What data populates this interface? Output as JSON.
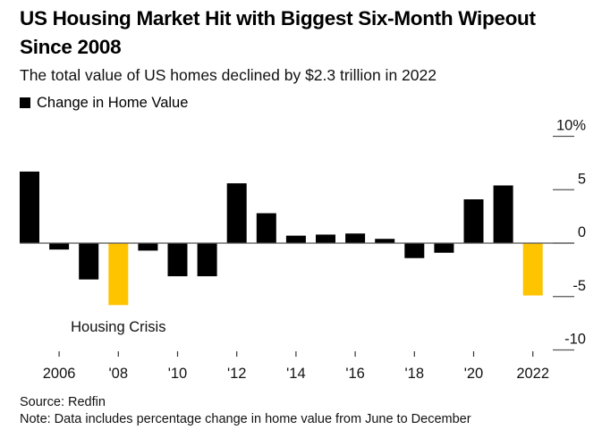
{
  "header": {
    "title": "US Housing Market Hit with Biggest Six-Month Wipeout Since 2008",
    "subtitle": "The total value of US homes declined by $2.3 trillion in 2022"
  },
  "legend": {
    "label": "Change in Home Value"
  },
  "footer": {
    "source": "Source: Redfin",
    "note": "Note: Data includes percentage change in home value from June to December"
  },
  "chart_data": {
    "type": "bar",
    "title": "US Housing Market Hit with Biggest Six-Month Wipeout Since 2008",
    "subtitle": "The total value of US homes declined by $2.3 trillion in 2022",
    "xlabel": "",
    "ylabel": "",
    "legend": [
      "Change in Home Value"
    ],
    "legend_position": "top-left",
    "categories": [
      2005,
      2006,
      2007,
      2008,
      2009,
      2010,
      2011,
      2012,
      2013,
      2014,
      2015,
      2016,
      2017,
      2018,
      2019,
      2020,
      2021,
      2022
    ],
    "values": [
      6.7,
      -0.6,
      -3.4,
      -5.8,
      -0.7,
      -3.1,
      -3.1,
      5.6,
      2.8,
      0.7,
      0.8,
      0.9,
      0.4,
      -1.4,
      -0.9,
      4.1,
      5.4,
      -4.9
    ],
    "highlight": [
      2008,
      2022
    ],
    "colors": {
      "default": "#000000",
      "highlight": "#ffc400",
      "zero_line": "#555555",
      "grid": "#555555"
    },
    "ylim": [
      -10,
      10
    ],
    "yticks": [
      10,
      5,
      0,
      -5,
      -10
    ],
    "ytick_labels": [
      "10%",
      "5",
      "0",
      "-5",
      "-10"
    ],
    "y_axis_side": "right",
    "xticks": [
      2006,
      2008,
      2010,
      2012,
      2014,
      2016,
      2018,
      2020,
      2022
    ],
    "xtick_labels": [
      "2006",
      "'08",
      "'10",
      "'12",
      "'14",
      "'16",
      "'18",
      "'20",
      "2022"
    ],
    "annotations": [
      {
        "text": "Housing Crisis",
        "x": 2008
      }
    ],
    "grid": false
  }
}
